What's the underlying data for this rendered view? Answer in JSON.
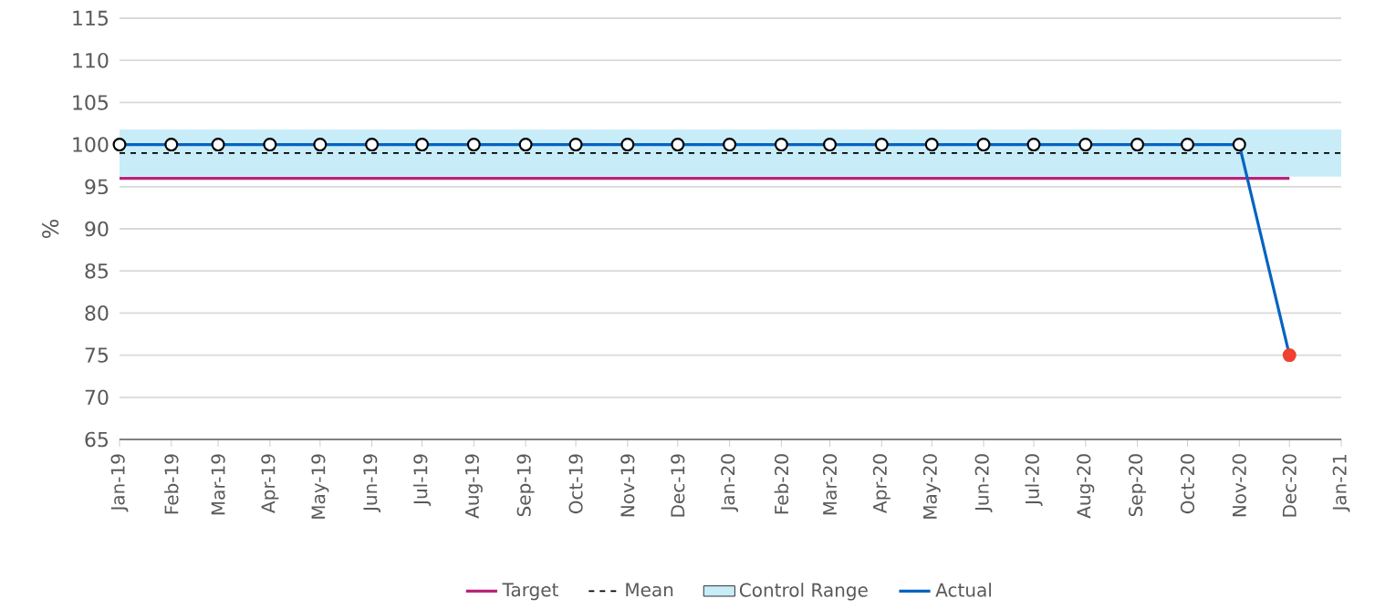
{
  "chart_data": {
    "type": "line",
    "ylabel": "%",
    "x": [
      "2019-01",
      "2019-02",
      "2019-03",
      "2019-04",
      "2019-05",
      "2019-06",
      "2019-07",
      "2019-08",
      "2019-09",
      "2019-10",
      "2019-11",
      "2019-12",
      "2020-01",
      "2020-02",
      "2020-03",
      "2020-04",
      "2020-05",
      "2020-06",
      "2020-07",
      "2020-08",
      "2020-09",
      "2020-10",
      "2020-11",
      "2020-12"
    ],
    "series": [
      {
        "name": "Target",
        "color": "#b8247a",
        "marker": "none",
        "values": [
          96,
          96,
          96,
          96,
          96,
          96,
          96,
          96,
          96,
          96,
          96,
          96,
          96,
          96,
          96,
          96,
          96,
          96,
          96,
          96,
          96,
          96,
          96,
          96
        ]
      },
      {
        "name": "Actual",
        "color": "#0563c1",
        "marker": "circle",
        "colors": [
          "#ffffff",
          "#ffffff",
          "#ffffff",
          "#ffffff",
          "#ffffff",
          "#ffffff",
          "#ffffff",
          "#ffffff",
          "#ffffff",
          "#ffffff",
          "#ffffff",
          "#ffffff",
          "#ffffff",
          "#ffffff",
          "#ffffff",
          "#ffffff",
          "#ffffff",
          "#ffffff",
          "#ffffff",
          "#ffffff",
          "#ffffff",
          "#ffffff",
          "#ffffff",
          "#f04030"
        ],
        "values": [
          100,
          100,
          100,
          100,
          100,
          100,
          100,
          100,
          100,
          100,
          100,
          100,
          100,
          100,
          100,
          100,
          100,
          100,
          100,
          100,
          100,
          100,
          100,
          75
        ]
      }
    ],
    "ref_lines": [
      {
        "axis": "y",
        "value": 99,
        "label": "Mean",
        "color": "#000000",
        "line_style": "dashed"
      }
    ],
    "bands": [
      {
        "axis": "y",
        "from": 96.2,
        "to": 101.8,
        "label": "Control Range",
        "color": "#c8ecf8"
      }
    ],
    "xlim": [
      "2019-01",
      "2021-01"
    ],
    "xticks": [
      {
        "value": "2019-01",
        "label": "Jan-19"
      },
      {
        "value": "2019-02",
        "label": "Feb-19"
      },
      {
        "value": "2019-03",
        "label": "Mar-19"
      },
      {
        "value": "2019-04",
        "label": "Apr-19"
      },
      {
        "value": "2019-05",
        "label": "May-19"
      },
      {
        "value": "2019-06",
        "label": "Jun-19"
      },
      {
        "value": "2019-07",
        "label": "Jul-19"
      },
      {
        "value": "2019-08",
        "label": "Aug-19"
      },
      {
        "value": "2019-09",
        "label": "Sep-19"
      },
      {
        "value": "2019-10",
        "label": "Oct-19"
      },
      {
        "value": "2019-11",
        "label": "Nov-19"
      },
      {
        "value": "2019-12",
        "label": "Dec-19"
      },
      {
        "value": "2020-01",
        "label": "Jan-20"
      },
      {
        "value": "2020-02",
        "label": "Feb-20"
      },
      {
        "value": "2020-03",
        "label": "Mar-20"
      },
      {
        "value": "2020-04",
        "label": "Apr-20"
      },
      {
        "value": "2020-05",
        "label": "May-20"
      },
      {
        "value": "2020-06",
        "label": "Jun-20"
      },
      {
        "value": "2020-07",
        "label": "Jul-20"
      },
      {
        "value": "2020-08",
        "label": "Aug-20"
      },
      {
        "value": "2020-09",
        "label": "Sep-20"
      },
      {
        "value": "2020-10",
        "label": "Oct-20"
      },
      {
        "value": "2020-11",
        "label": "Nov-20"
      },
      {
        "value": "2020-12",
        "label": "Dec-20"
      },
      {
        "value": "2021-01",
        "label": "Jan-21"
      }
    ],
    "ylim": [
      65,
      115
    ],
    "yticks": [
      65,
      70,
      75,
      80,
      85,
      90,
      95,
      100,
      105,
      110,
      115
    ],
    "grid": "y",
    "legend": "bottom",
    "line_style": "solid"
  }
}
